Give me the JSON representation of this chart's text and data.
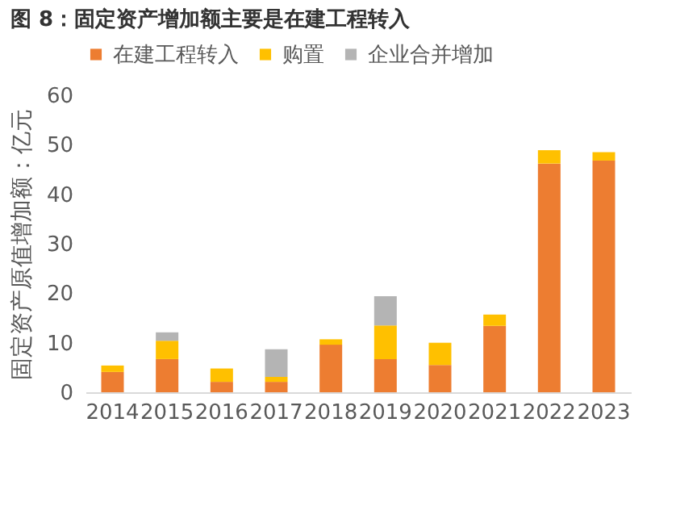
{
  "chart_data": {
    "type": "bar",
    "title": "图 8：固定资产增加额主要是在建工程转入",
    "ylabel": "固定资产原值增加额：亿元",
    "categories": [
      "2014",
      "2015",
      "2016",
      "2017",
      "2018",
      "2019",
      "2020",
      "2021",
      "2022",
      "2023"
    ],
    "stacked": true,
    "series": [
      {
        "name": "在建工程转入",
        "color": "#ed7d31",
        "values": [
          4.1,
          6.7,
          2.1,
          2.1,
          9.6,
          6.7,
          5.5,
          13.4,
          46.2,
          46.8
        ]
      },
      {
        "name": "购置",
        "color": "#ffc000",
        "values": [
          1.3,
          3.7,
          2.7,
          1.0,
          1.1,
          6.8,
          4.5,
          2.3,
          2.7,
          1.7
        ]
      },
      {
        "name": "企业合并增加",
        "color": "#b4b4b4",
        "values": [
          null,
          1.7,
          null,
          5.6,
          null,
          5.9,
          null,
          null,
          null,
          null
        ]
      }
    ],
    "ylim": [
      0,
      60
    ],
    "yticks": [
      0,
      10,
      20,
      30,
      40,
      50,
      60
    ],
    "grid": false,
    "legend": "top"
  }
}
